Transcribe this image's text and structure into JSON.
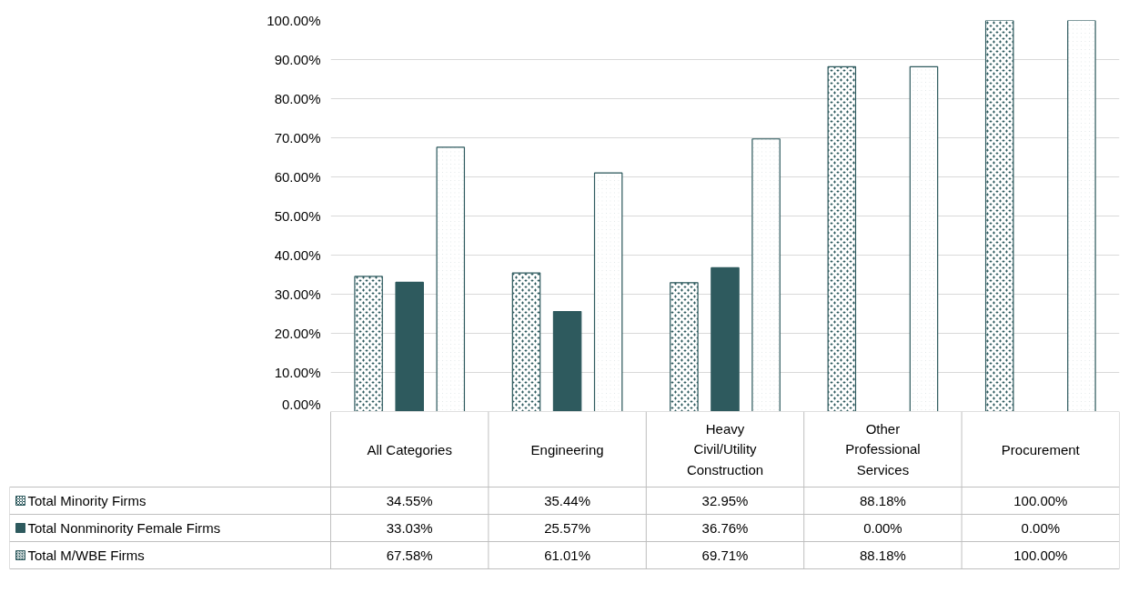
{
  "chart_data": {
    "type": "bar",
    "categories": [
      "All Categories",
      "Engineering",
      "Heavy Civil/Utility Construction",
      "Other Professional Services",
      "Procurement"
    ],
    "series": [
      {
        "name": "Total Minority Firms",
        "color": "#2e5a5e",
        "values": [
          34.55,
          35.44,
          32.95,
          88.18,
          100.0
        ],
        "value_labels": [
          "34.55%",
          "35.44%",
          "32.95%",
          "88.18%",
          "100.00%"
        ]
      },
      {
        "name": "Total Nonminority Female Firms",
        "color": "#2e5a5e",
        "values": [
          33.03,
          25.57,
          36.76,
          0.0,
          0.0
        ],
        "value_labels": [
          "33.03%",
          "25.57%",
          "36.76%",
          "0.00%",
          "0.00%"
        ]
      },
      {
        "name": "Total M/WBE Firms",
        "color": "#2e5a5e",
        "values": [
          67.58,
          61.01,
          69.71,
          88.18,
          100.0
        ],
        "value_labels": [
          "67.58%",
          "61.01%",
          "69.71%",
          "88.18%",
          "100.00%"
        ]
      }
    ],
    "ylim": [
      0,
      100
    ],
    "yticks": [
      {
        "value": 0,
        "label": "0.00%"
      },
      {
        "value": 10,
        "label": "10.00%"
      },
      {
        "value": 20,
        "label": "20.00%"
      },
      {
        "value": 30,
        "label": "30.00%"
      },
      {
        "value": 40,
        "label": "40.00%"
      },
      {
        "value": 50,
        "label": "50.00%"
      },
      {
        "value": 60,
        "label": "60.00%"
      },
      {
        "value": 70,
        "label": "70.00%"
      },
      {
        "value": 80,
        "label": "80.00%"
      },
      {
        "value": 90,
        "label": "90.00%"
      },
      {
        "value": 100,
        "label": "100.00%"
      }
    ],
    "grid": "y",
    "legend": "bottom"
  }
}
